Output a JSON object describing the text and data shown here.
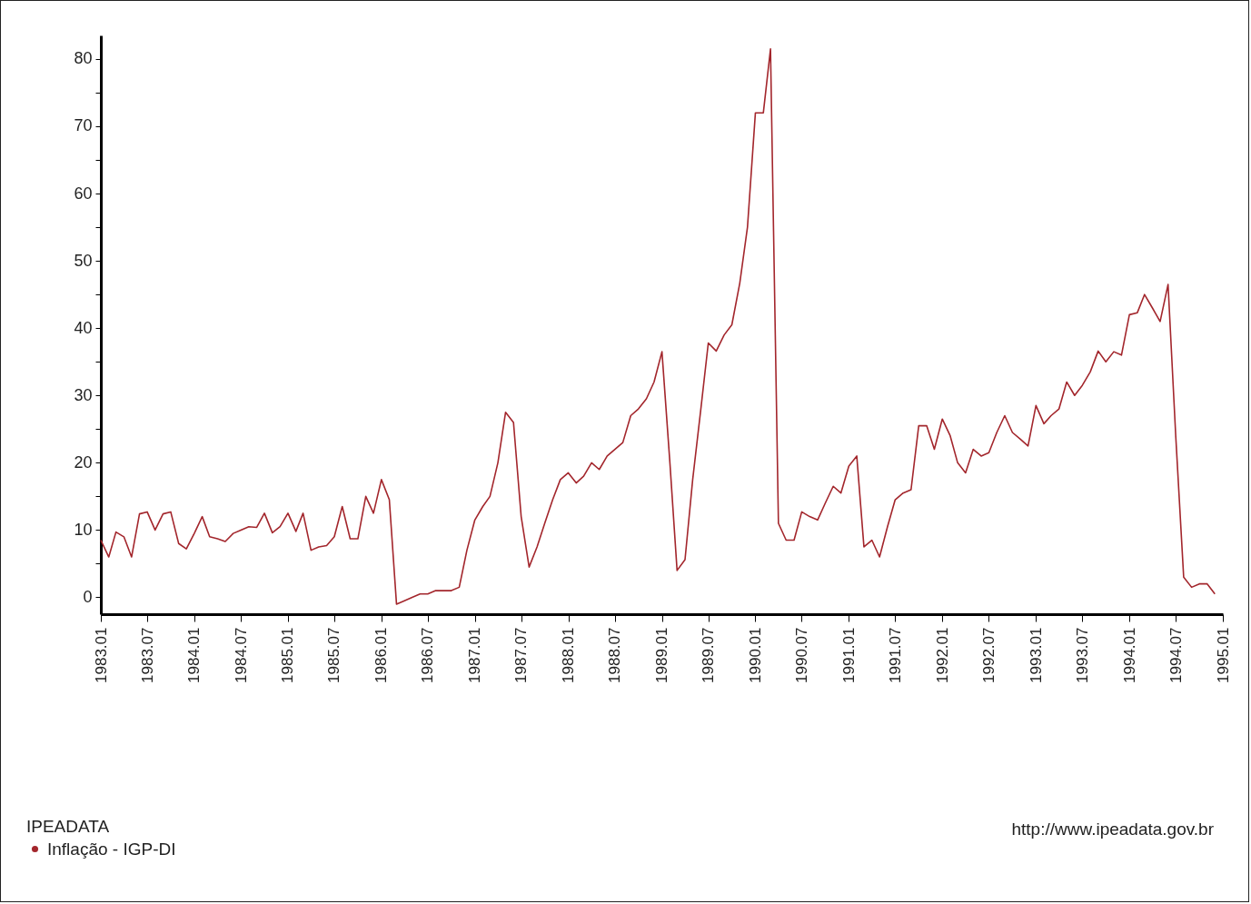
{
  "chart_data": {
    "type": "line",
    "x": [
      "1983-01",
      "1983-02",
      "1983-03",
      "1983-04",
      "1983-05",
      "1983-06",
      "1983-07",
      "1983-08",
      "1983-09",
      "1983-10",
      "1983-11",
      "1983-12",
      "1984-01",
      "1984-02",
      "1984-03",
      "1984-04",
      "1984-05",
      "1984-06",
      "1984-07",
      "1984-08",
      "1984-09",
      "1984-10",
      "1984-11",
      "1984-12",
      "1985-01",
      "1985-02",
      "1985-03",
      "1985-04",
      "1985-05",
      "1985-06",
      "1985-07",
      "1985-08",
      "1985-09",
      "1985-10",
      "1985-11",
      "1985-12",
      "1986-01",
      "1986-02",
      "1986-03",
      "1986-04",
      "1986-05",
      "1986-06",
      "1986-07",
      "1986-08",
      "1986-09",
      "1986-10",
      "1986-11",
      "1986-12",
      "1987-01",
      "1987-02",
      "1987-03",
      "1987-04",
      "1987-05",
      "1987-06",
      "1987-07",
      "1987-08",
      "1987-09",
      "1987-10",
      "1987-11",
      "1987-12",
      "1988-01",
      "1988-02",
      "1988-03",
      "1988-04",
      "1988-05",
      "1988-06",
      "1988-07",
      "1988-08",
      "1988-09",
      "1988-10",
      "1988-11",
      "1988-12",
      "1989-01",
      "1989-02",
      "1989-03",
      "1989-04",
      "1989-05",
      "1989-06",
      "1989-07",
      "1989-08",
      "1989-09",
      "1989-10",
      "1989-11",
      "1989-12",
      "1990-01",
      "1990-02",
      "1990-03",
      "1990-04",
      "1990-05",
      "1990-06",
      "1990-07",
      "1990-08",
      "1990-09",
      "1990-10",
      "1990-11",
      "1990-12",
      "1991-01",
      "1991-02",
      "1991-03",
      "1991-04",
      "1991-05",
      "1991-06",
      "1991-07",
      "1991-08",
      "1991-09",
      "1991-10",
      "1991-11",
      "1991-12",
      "1992-01",
      "1992-02",
      "1992-03",
      "1992-04",
      "1992-05",
      "1992-06",
      "1992-07",
      "1992-08",
      "1992-09",
      "1992-10",
      "1992-11",
      "1992-12",
      "1993-01",
      "1993-02",
      "1993-03",
      "1993-04",
      "1993-05",
      "1993-06",
      "1993-07",
      "1993-08",
      "1993-09",
      "1993-10",
      "1993-11",
      "1993-12",
      "1994-01",
      "1994-02",
      "1994-03",
      "1994-04",
      "1994-05",
      "1994-06",
      "1994-07",
      "1994-08",
      "1994-09",
      "1994-10",
      "1994-11",
      "1994-12"
    ],
    "series": [
      {
        "name": "Inflação - IGP-DI",
        "color": "#a3262c",
        "values": [
          8.5,
          6,
          9.7,
          9,
          6,
          12.4,
          12.7,
          10,
          12.4,
          12.7,
          8,
          7.2,
          9.5,
          12,
          9,
          8.7,
          8.3,
          9.5,
          10,
          10.5,
          10.4,
          12.5,
          9.6,
          10.5,
          12.5,
          9.8,
          12.5,
          7,
          7.5,
          7.7,
          9,
          13.5,
          8.7,
          8.7,
          15,
          12.5,
          17.5,
          14.5,
          -1,
          -0.5,
          0,
          0.5,
          0.5,
          1,
          1,
          1,
          1.5,
          7,
          11.5,
          13.5,
          15,
          20,
          27.5,
          26,
          12,
          4.5,
          7.5,
          11,
          14.5,
          17.5,
          18.5,
          17,
          18,
          20,
          19,
          21,
          22,
          23,
          27,
          28,
          29.5,
          32,
          36.5,
          20,
          4,
          5.6,
          17.5,
          27.7,
          37.8,
          36.6,
          39,
          40.5,
          46.7,
          55,
          72,
          72,
          81.5,
          11,
          8.5,
          8.5,
          12.7,
          12,
          11.5,
          14,
          16.5,
          15.5,
          19.5,
          21,
          7.5,
          8.5,
          6,
          10.5,
          14.5,
          15.5,
          16,
          25.5,
          25.5,
          22,
          26.5,
          24,
          20,
          18.5,
          22,
          21,
          21.5,
          24.5,
          27,
          24.5,
          23.5,
          22.5,
          28.5,
          25.8,
          27,
          28,
          32,
          30,
          31.5,
          33.5,
          36.6,
          35,
          36.5,
          36,
          42,
          42.3,
          45,
          43,
          41,
          46.5,
          24,
          3,
          1.5,
          2,
          2,
          0.5
        ]
      }
    ],
    "xlim": [
      "1983-01",
      "1995-01"
    ],
    "xticks": [
      {
        "value": "1983-01",
        "label": "1983.01"
      },
      {
        "value": "1983-07",
        "label": "1983.07"
      },
      {
        "value": "1984-01",
        "label": "1984.01"
      },
      {
        "value": "1984-07",
        "label": "1984.07"
      },
      {
        "value": "1985-01",
        "label": "1985.01"
      },
      {
        "value": "1985-07",
        "label": "1985.07"
      },
      {
        "value": "1986-01",
        "label": "1986.01"
      },
      {
        "value": "1986-07",
        "label": "1986.07"
      },
      {
        "value": "1987-01",
        "label": "1987.01"
      },
      {
        "value": "1987-07",
        "label": "1987.07"
      },
      {
        "value": "1988-01",
        "label": "1988.01"
      },
      {
        "value": "1988-07",
        "label": "1988.07"
      },
      {
        "value": "1989-01",
        "label": "1989.01"
      },
      {
        "value": "1989-07",
        "label": "1989.07"
      },
      {
        "value": "1990-01",
        "label": "1990.01"
      },
      {
        "value": "1990-07",
        "label": "1990.07"
      },
      {
        "value": "1991-01",
        "label": "1991.01"
      },
      {
        "value": "1991-07",
        "label": "1991.07"
      },
      {
        "value": "1992-01",
        "label": "1992.01"
      },
      {
        "value": "1992-07",
        "label": "1992.07"
      },
      {
        "value": "1993-01",
        "label": "1993.01"
      },
      {
        "value": "1993-07",
        "label": "1993.07"
      },
      {
        "value": "1994-01",
        "label": "1994.01"
      },
      {
        "value": "1994-07",
        "label": "1994.07"
      },
      {
        "value": "1995-01",
        "label": "1995.01"
      }
    ],
    "ylim": [
      -2.5,
      83.5
    ],
    "yticks": [
      0,
      {
        "value": 5,
        "label": null
      },
      10,
      {
        "value": 15,
        "label": null
      },
      20,
      {
        "value": 25,
        "label": null
      },
      30,
      {
        "value": 35,
        "label": null
      },
      40,
      {
        "value": 45,
        "label": null
      },
      50,
      {
        "value": 55,
        "label": null
      },
      60,
      {
        "value": 65,
        "label": null
      },
      70,
      {
        "value": 75,
        "label": null
      },
      80
    ],
    "legend": "bottom left",
    "legend_title": "IPEADATA",
    "annotations": [
      "http://www.ipeadata.gov.br"
    ]
  }
}
